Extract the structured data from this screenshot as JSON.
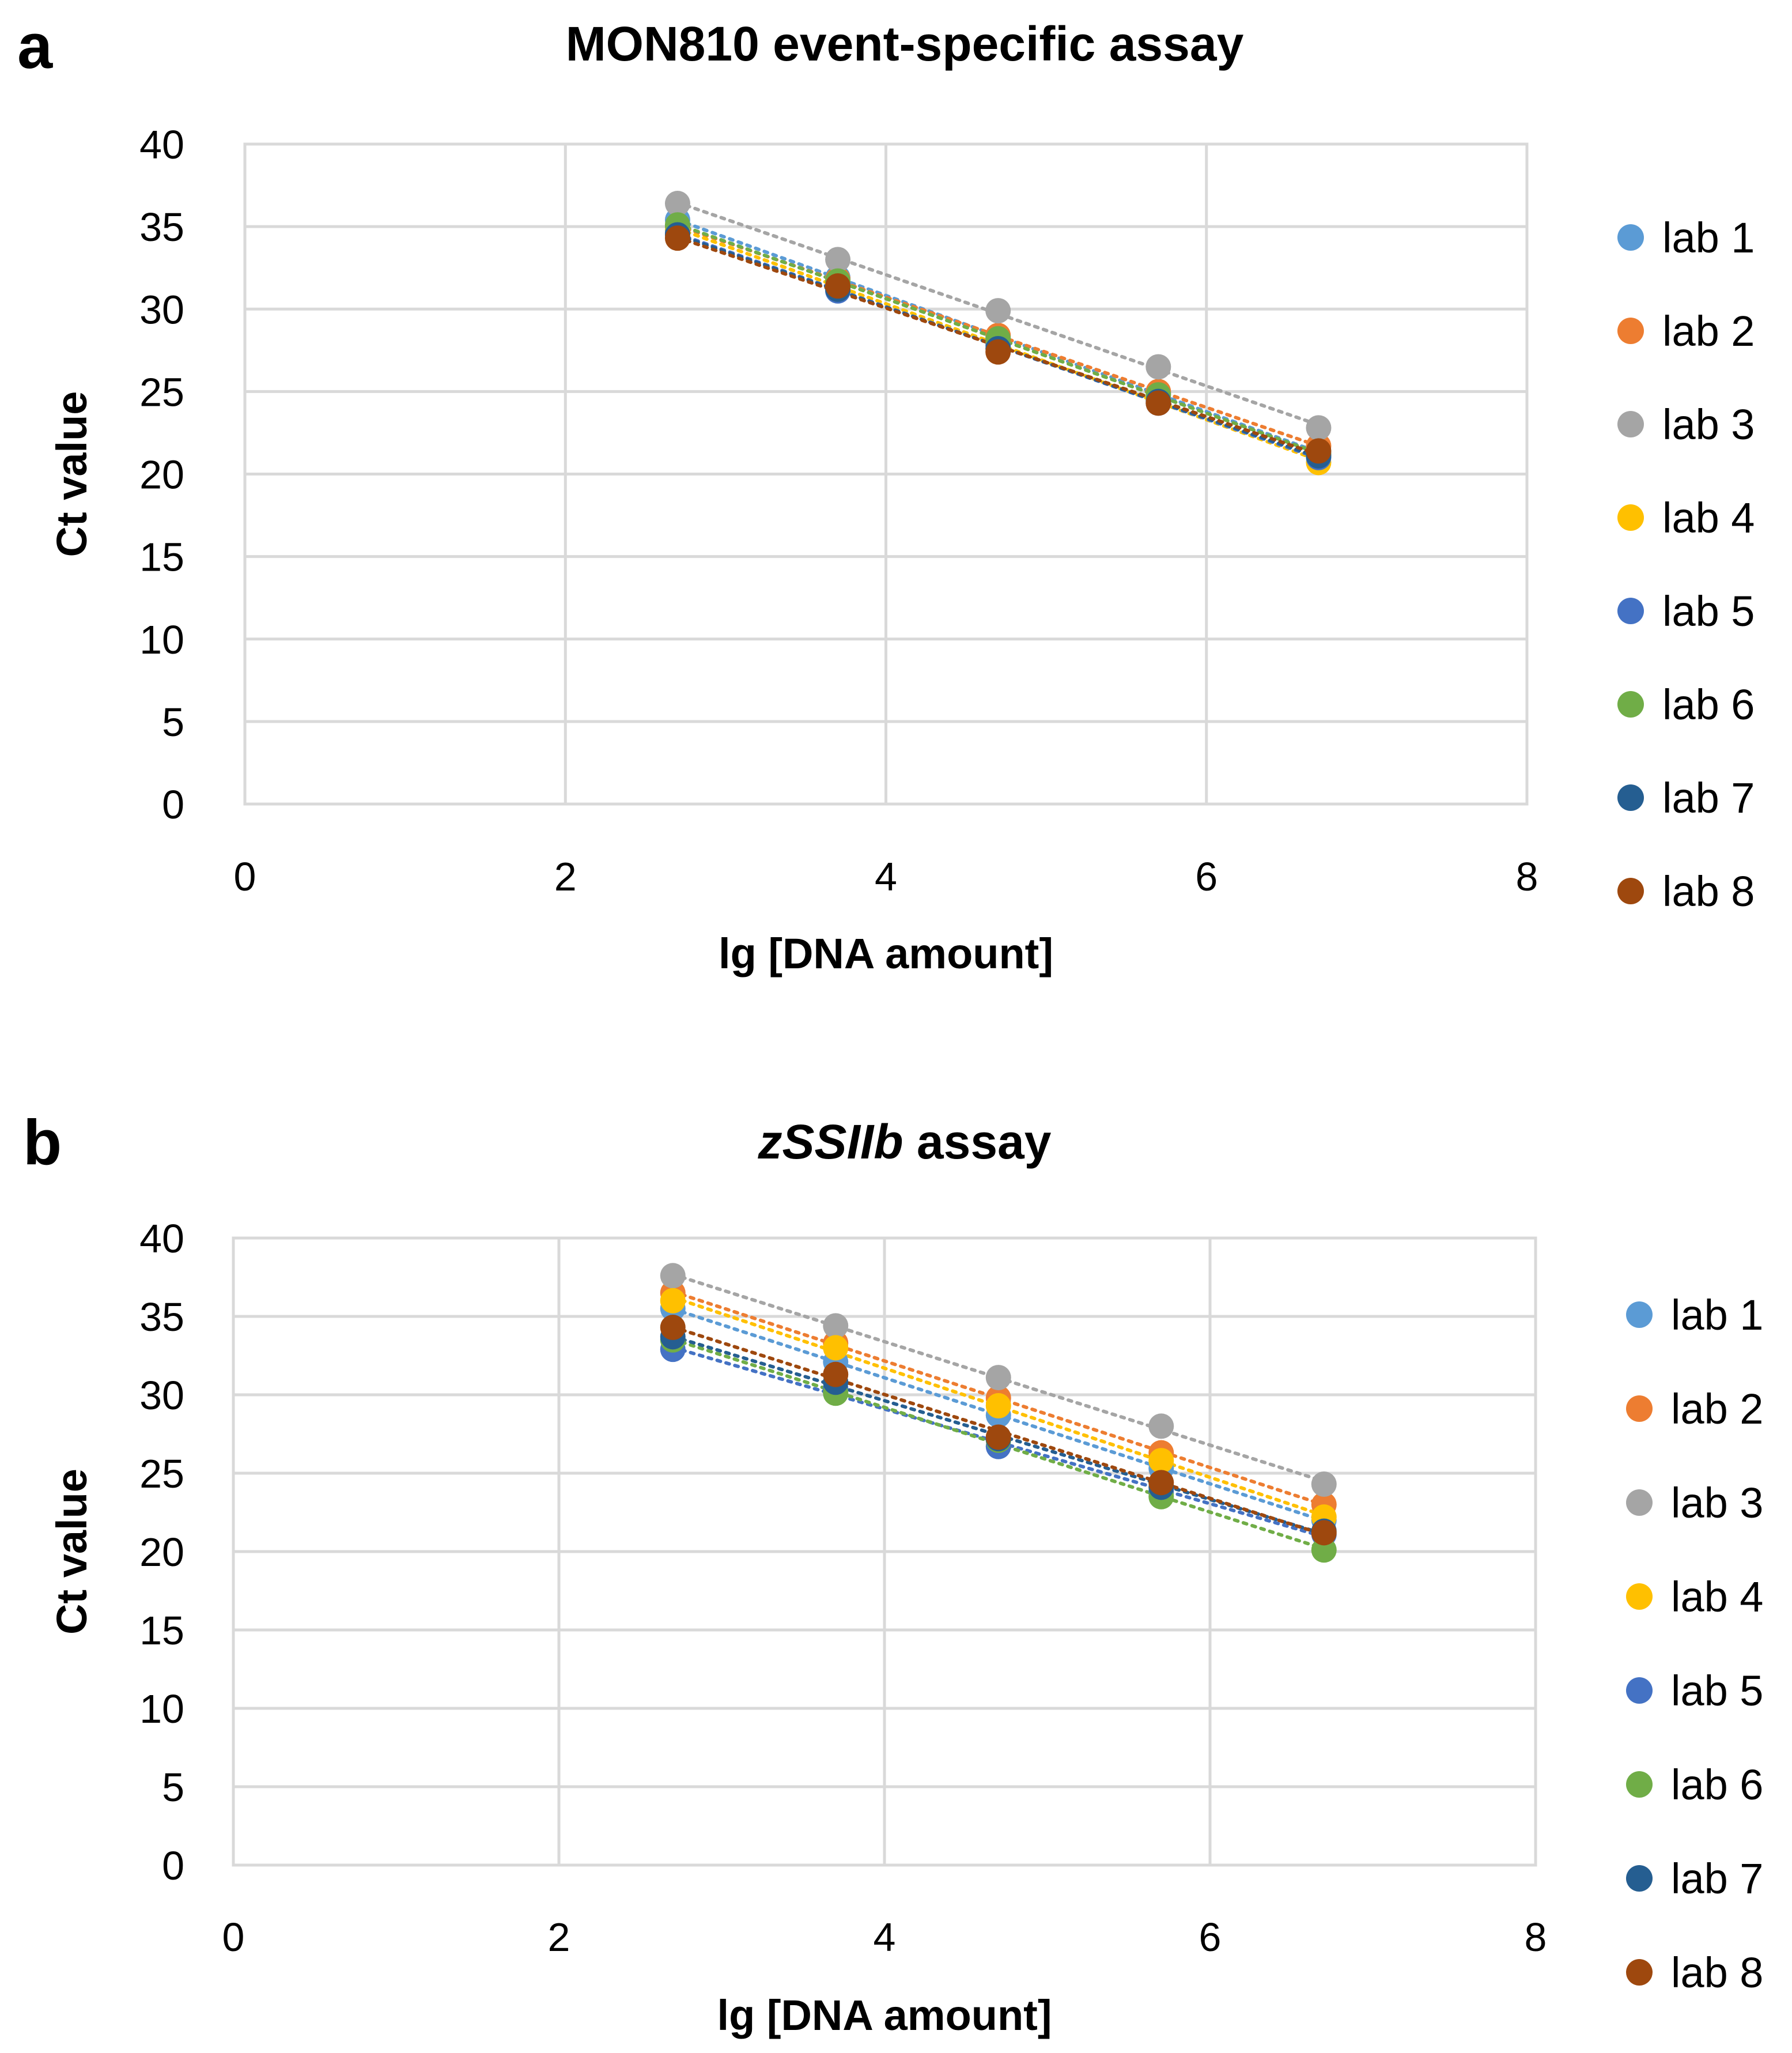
{
  "charts": [
    {
      "panel": "a",
      "title": "MON810 event-specific assay",
      "title_italic": "",
      "title_rest": "MON810 event-specific assay",
      "type": "scatter",
      "xlabel": "lg [DNA amount]",
      "ylabel": "Ct value",
      "xlim": [
        0,
        8
      ],
      "ylim": [
        0,
        40
      ],
      "xticks": [
        0,
        2,
        4,
        6,
        8
      ],
      "yticks": [
        0,
        5,
        10,
        15,
        20,
        25,
        30,
        35,
        40
      ],
      "trendline": "linear, dotted",
      "legend_position": "right",
      "x": [
        2.7,
        3.7,
        4.7,
        5.7,
        6.7
      ],
      "series": [
        {
          "name": "lab 1",
          "color": "#5b9bd5",
          "values": [
            35.4,
            31.9,
            28.3,
            24.9,
            21.3
          ]
        },
        {
          "name": "lab 2",
          "color": "#ed7d31",
          "values": [
            35.0,
            31.8,
            28.4,
            25.0,
            21.7
          ]
        },
        {
          "name": "lab 3",
          "color": "#a5a5a5",
          "values": [
            36.4,
            33.0,
            29.9,
            26.5,
            22.8
          ]
        },
        {
          "name": "lab 4",
          "color": "#ffc000",
          "values": [
            34.8,
            31.4,
            27.9,
            24.5,
            20.7
          ]
        },
        {
          "name": "lab 5",
          "color": "#4472c4",
          "values": [
            34.6,
            31.1,
            27.8,
            24.3,
            21.0
          ]
        },
        {
          "name": "lab 6",
          "color": "#70ad47",
          "values": [
            35.1,
            31.7,
            28.2,
            24.8,
            21.2
          ]
        },
        {
          "name": "lab 7",
          "color": "#255e91",
          "values": [
            34.5,
            31.2,
            27.6,
            24.4,
            21.1
          ]
        },
        {
          "name": "lab 8",
          "color": "#9e480e",
          "values": [
            34.3,
            31.4,
            27.4,
            24.3,
            21.4
          ]
        }
      ]
    },
    {
      "panel": "b",
      "title": "zSSIIb assay",
      "title_italic": "zSSIIb",
      "title_rest": " assay",
      "type": "scatter",
      "xlabel": "lg [DNA amount]",
      "ylabel": "Ct value",
      "xlim": [
        0,
        8
      ],
      "ylim": [
        0,
        40
      ],
      "xticks": [
        0,
        2,
        4,
        6,
        8
      ],
      "yticks": [
        0,
        5,
        10,
        15,
        20,
        25,
        30,
        35,
        40
      ],
      "trendline": "linear, dotted",
      "legend_position": "right",
      "x": [
        2.7,
        3.7,
        4.7,
        5.7,
        6.7
      ],
      "series": [
        {
          "name": "lab 1",
          "color": "#5b9bd5",
          "values": [
            35.5,
            32.1,
            28.7,
            25.3,
            22.0
          ]
        },
        {
          "name": "lab 2",
          "color": "#ed7d31",
          "values": [
            36.5,
            33.3,
            29.8,
            26.3,
            23.0
          ]
        },
        {
          "name": "lab 3",
          "color": "#a5a5a5",
          "values": [
            37.6,
            34.4,
            31.1,
            28.0,
            24.3
          ]
        },
        {
          "name": "lab 4",
          "color": "#ffc000",
          "values": [
            36.0,
            33.0,
            29.3,
            25.8,
            22.2
          ]
        },
        {
          "name": "lab 5",
          "color": "#4472c4",
          "values": [
            32.9,
            30.4,
            26.7,
            23.8,
            21.1
          ]
        },
        {
          "name": "lab 6",
          "color": "#70ad47",
          "values": [
            33.5,
            30.1,
            27.1,
            23.5,
            20.1
          ]
        },
        {
          "name": "lab 7",
          "color": "#255e91",
          "values": [
            33.7,
            30.8,
            27.2,
            24.1,
            21.3
          ]
        },
        {
          "name": "lab 8",
          "color": "#9e480e",
          "values": [
            34.3,
            31.3,
            27.3,
            24.4,
            21.2
          ]
        }
      ]
    }
  ]
}
